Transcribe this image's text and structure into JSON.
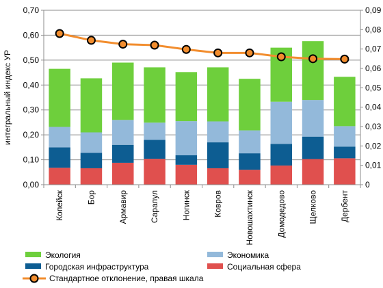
{
  "chart_data": {
    "type": "bar",
    "stacked": true,
    "categories": [
      "Копейск",
      "Бор",
      "Армавир",
      "Сарапул",
      "Ногинск",
      "Ковров",
      "Новошахтинск",
      "Домодедово",
      "Щелково",
      "Дербент"
    ],
    "series": [
      {
        "name": "Социальная сфера",
        "color": "#E0504E",
        "values": [
          0.068,
          0.066,
          0.088,
          0.104,
          0.08,
          0.066,
          0.06,
          0.077,
          0.103,
          0.106
        ]
      },
      {
        "name": "Городская инфраструктура",
        "color": "#0D5D92",
        "values": [
          0.082,
          0.062,
          0.072,
          0.076,
          0.038,
          0.104,
          0.066,
          0.087,
          0.09,
          0.047
        ]
      },
      {
        "name": "Экономика",
        "color": "#93B9DA",
        "values": [
          0.082,
          0.082,
          0.1,
          0.069,
          0.137,
          0.084,
          0.092,
          0.169,
          0.147,
          0.082
        ]
      },
      {
        "name": "Экология",
        "color": "#6ECF3C",
        "values": [
          0.233,
          0.217,
          0.23,
          0.222,
          0.197,
          0.217,
          0.207,
          0.217,
          0.236,
          0.198
        ]
      }
    ],
    "line_series": {
      "name": "Стандартное отклонение, правая шкала",
      "color": "#F28D2E",
      "marker_fill": "#F28D2E",
      "marker_stroke": "#000000",
      "values": [
        0.078,
        0.0745,
        0.0725,
        0.072,
        0.0698,
        0.068,
        0.068,
        0.066,
        0.065,
        0.0648
      ]
    },
    "ylabel": "интегральный индекс УР",
    "ylim": [
      0,
      0.7
    ],
    "yticks": [
      "0,00",
      "0,10",
      "0,20",
      "0,30",
      "0,40",
      "0,50",
      "0,60",
      "0,70"
    ],
    "y2lim": [
      0,
      0.09
    ],
    "y2ticks": [
      "0",
      "0,01",
      "0,02",
      "0,03",
      "0,04",
      "0,05",
      "0,06",
      "0,07",
      "0,08",
      "0,09"
    ],
    "grid": true,
    "legend": {
      "placement": "bottom",
      "items": [
        {
          "label": "Экология",
          "kind": "box",
          "color": "#6ECF3C"
        },
        {
          "label": "Экономика",
          "kind": "box",
          "color": "#93B9DA"
        },
        {
          "label": "Городская инфраструктура",
          "kind": "box",
          "color": "#0D5D92"
        },
        {
          "label": "Социальная сфера",
          "kind": "box",
          "color": "#E0504E"
        },
        {
          "label": "Стандартное отклонение, правая шкала",
          "kind": "line",
          "color": "#F28D2E"
        }
      ]
    }
  }
}
